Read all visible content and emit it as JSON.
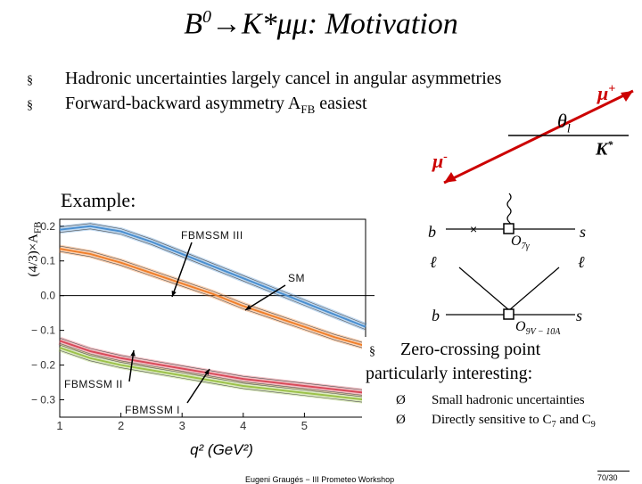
{
  "title": {
    "b": "B",
    "b_sup": "0",
    "rest": "→K*μμ: Motivation"
  },
  "bullets": [
    {
      "marker": "§",
      "text": "Hadronic uncertainties largely cancel in angular asymmetries"
    },
    {
      "marker": "§",
      "text_pre": "Forward-backward asymmetry A",
      "sub": "FB",
      "text_post": " easiest"
    }
  ],
  "kinematics": {
    "mu_plus": "μ",
    "mu_plus_sup": "+",
    "mu_minus": "μ",
    "mu_minus_sup": "-",
    "theta": "θ",
    "theta_sub": "l",
    "kstar": "K",
    "kstar_sup": "*"
  },
  "example_label": "Example:",
  "y_axis_label_pre": "(4/3)×A",
  "y_axis_label_sub": "FB",
  "plot": {
    "xlabel": "q² (GeV²)",
    "xticks": [
      "1",
      "2",
      "3",
      "4",
      "5",
      "6"
    ],
    "yticks": [
      "0.2",
      "0.1",
      "0.0",
      "− 0.1",
      "− 0.2",
      "− 0.3"
    ],
    "labels": {
      "fbmssm3": "FBMSSM III",
      "sm": "SM",
      "fbmssm2": "FBMSSM II",
      "fbmssm1": "FBMSSM I"
    }
  },
  "chart_data": {
    "type": "line",
    "xlim": [
      1,
      6
    ],
    "ylim": [
      -0.35,
      0.22
    ],
    "xlabel": "q² (GeV²)",
    "ylabel": "(4/3)×A_FB",
    "series": [
      {
        "name": "FBMSSM III",
        "color": "#4a8fd0",
        "x": [
          1,
          1.5,
          2,
          2.5,
          3,
          3.5,
          4,
          4.5,
          5,
          5.5,
          6
        ],
        "y": [
          0.19,
          0.2,
          0.185,
          0.155,
          0.12,
          0.085,
          0.05,
          0.015,
          -0.02,
          -0.055,
          -0.09
        ]
      },
      {
        "name": "SM",
        "color": "#f07f2a",
        "x": [
          1,
          1.5,
          2,
          2.5,
          3,
          3.5,
          4,
          4.5,
          5,
          5.5,
          6
        ],
        "y": [
          0.135,
          0.12,
          0.095,
          0.065,
          0.035,
          0.005,
          -0.03,
          -0.06,
          -0.09,
          -0.12,
          -0.145
        ]
      },
      {
        "name": "FBMSSM II",
        "color": "#d94a5a",
        "x": [
          1,
          1.5,
          2,
          2.5,
          3,
          3.5,
          4,
          4.5,
          5,
          5.5,
          6
        ],
        "y": [
          -0.13,
          -0.16,
          -0.18,
          -0.195,
          -0.21,
          -0.225,
          -0.24,
          -0.25,
          -0.26,
          -0.27,
          -0.28
        ]
      },
      {
        "name": "FBMSSM I",
        "color": "#9cc24a",
        "x": [
          1,
          1.5,
          2,
          2.5,
          3,
          3.5,
          4,
          4.5,
          5,
          5.5,
          6
        ],
        "y": [
          -0.15,
          -0.18,
          -0.2,
          -0.215,
          -0.23,
          -0.245,
          -0.26,
          -0.27,
          -0.28,
          -0.29,
          -0.3
        ]
      }
    ]
  },
  "feynman": {
    "b_top": "b",
    "s_top": "s",
    "l_left": "ℓ",
    "l_right": "ℓ",
    "b_bot": "b",
    "s_bot": "s",
    "o7": "O",
    "o7_sub": "7γ",
    "o9": "O",
    "o9_sub": "9V − 10A"
  },
  "zero_crossing": {
    "marker": "§",
    "line1": "Zero-crossing point",
    "line2": "particularly interesting:"
  },
  "sub_bullets": [
    {
      "marker": "Ø",
      "text": "Small hadronic uncertainties"
    },
    {
      "marker": "Ø",
      "text_pre": "Directly sensitive to C",
      "sub1": "7",
      "text_mid": " and C",
      "sub2": "9"
    }
  ],
  "footer": {
    "center": "Eugeni Graugés − III Prometeo Workshop",
    "page": "70/30"
  }
}
